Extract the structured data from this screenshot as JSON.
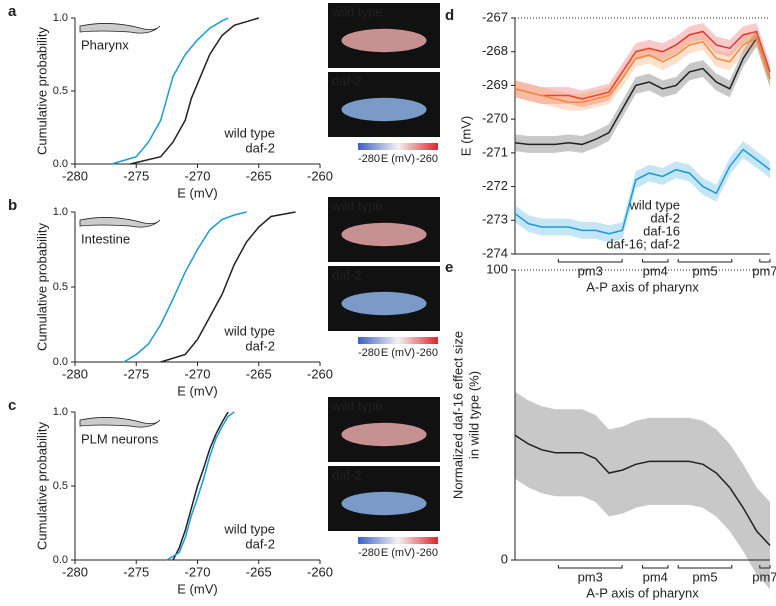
{
  "chart_data": [
    {
      "type": "cdf",
      "panel": "a",
      "annotation": "Pharynx",
      "xlabel": "E (mV)",
      "ylabel": "Cumulative probability",
      "xlim": [
        -280,
        -260
      ],
      "xticks": [
        -280,
        -275,
        -270,
        -265,
        -260
      ],
      "ylim": [
        0,
        1
      ],
      "yticks": [
        {
          "value": 0,
          "label": "0.0"
        },
        {
          "value": 0.5,
          "label": "0.5"
        },
        {
          "value": 1,
          "label": "1.0"
        }
      ],
      "series": [
        {
          "name": "wild type",
          "color": "#222222",
          "x": [
            -275.5,
            -273,
            -272,
            -271,
            -270.5,
            -270,
            -269.5,
            -269,
            -268,
            -267,
            -265
          ],
          "values": [
            0,
            0.05,
            0.15,
            0.3,
            0.45,
            0.55,
            0.65,
            0.75,
            0.88,
            0.95,
            1
          ]
        },
        {
          "name": "daf-2",
          "color": "#1a9bd7",
          "x": [
            -277,
            -275,
            -274,
            -273,
            -272.5,
            -272,
            -271,
            -270,
            -269,
            -268,
            -267.5
          ],
          "values": [
            0,
            0.05,
            0.15,
            0.3,
            0.45,
            0.6,
            0.75,
            0.85,
            0.93,
            0.98,
            1
          ]
        }
      ],
      "image_labels": [
        "wild type",
        "daf-2"
      ],
      "colorbar_ticks": [
        -280,
        -260
      ],
      "colorbar_label": "E (mV)"
    },
    {
      "type": "cdf",
      "panel": "b",
      "annotation": "Intestine",
      "xlabel": "E (mV)",
      "ylabel": "Cumulative probability",
      "xlim": [
        -280,
        -260
      ],
      "xticks": [
        -280,
        -275,
        -270,
        -265,
        -260
      ],
      "ylim": [
        0,
        1
      ],
      "yticks": [
        {
          "value": 0,
          "label": "0.0"
        },
        {
          "value": 0.5,
          "label": "0.5"
        },
        {
          "value": 1,
          "label": "1.0"
        }
      ],
      "series": [
        {
          "name": "wild type",
          "color": "#222222",
          "x": [
            -273,
            -271,
            -270,
            -269,
            -268,
            -267.5,
            -267,
            -266,
            -265,
            -264,
            -262
          ],
          "values": [
            0,
            0.05,
            0.15,
            0.3,
            0.45,
            0.55,
            0.65,
            0.8,
            0.9,
            0.97,
            1
          ]
        },
        {
          "name": "daf-2",
          "color": "#1a9bd7",
          "x": [
            -276,
            -275,
            -274,
            -273,
            -272,
            -271,
            -270,
            -269,
            -268,
            -267,
            -266
          ],
          "values": [
            0,
            0.05,
            0.12,
            0.25,
            0.42,
            0.6,
            0.75,
            0.88,
            0.95,
            0.98,
            1
          ]
        }
      ],
      "image_labels": [
        "wild type",
        "daf-2"
      ],
      "colorbar_ticks": [
        -280,
        -260
      ],
      "colorbar_label": "E (mV)"
    },
    {
      "type": "cdf",
      "panel": "c",
      "annotation": "PLM neurons",
      "xlabel": "E (mV)",
      "ylabel": "Cumulative probability",
      "xlim": [
        -280,
        -260
      ],
      "xticks": [
        -280,
        -275,
        -270,
        -265,
        -260
      ],
      "ylim": [
        0,
        1
      ],
      "yticks": [
        {
          "value": 0,
          "label": "0.0"
        },
        {
          "value": 0.5,
          "label": "0.5"
        },
        {
          "value": 1,
          "label": "1.0"
        }
      ],
      "series": [
        {
          "name": "wild type",
          "color": "#222222",
          "x": [
            -272,
            -271.5,
            -271,
            -270.5,
            -270,
            -269.5,
            -269,
            -268.5,
            -268,
            -267.5
          ],
          "values": [
            0,
            0.08,
            0.2,
            0.35,
            0.5,
            0.62,
            0.75,
            0.85,
            0.93,
            1
          ]
        },
        {
          "name": "daf-2",
          "color": "#1a9bd7",
          "x": [
            -272.5,
            -271.5,
            -271,
            -270.5,
            -270,
            -269.5,
            -269,
            -268.5,
            -268,
            -267.5,
            -267
          ],
          "values": [
            0,
            0.05,
            0.15,
            0.3,
            0.42,
            0.55,
            0.7,
            0.82,
            0.9,
            0.97,
            1
          ]
        }
      ],
      "image_labels": [
        "wild type",
        "daf-2"
      ],
      "colorbar_ticks": [
        -280,
        -260
      ],
      "colorbar_label": "E (mV)"
    },
    {
      "type": "band",
      "panel": "d",
      "xlabel": "A-P axis of pharynx",
      "ylabel": [
        "E (mV)"
      ],
      "ylim": [
        -274,
        -267
      ],
      "yticks": [
        -274,
        -273,
        -272,
        -271,
        -270,
        -269,
        -268,
        -267
      ],
      "regions": [
        "pm3",
        "pm4",
        "pm5",
        "pm7"
      ],
      "series": [
        {
          "name": "wild type",
          "color": "#222222",
          "error": 0.25,
          "values": [
            -270.7,
            -270.75,
            -270.75,
            -270.75,
            -270.7,
            -270.75,
            -270.6,
            -270.4,
            -269.7,
            -269.0,
            -268.9,
            -269.1,
            -269.0,
            -268.6,
            -268.5,
            -268.9,
            -269.1,
            -268.2,
            -267.6,
            -268.8
          ]
        },
        {
          "name": "daf-2",
          "color": "#1a9bd7",
          "error": 0.25,
          "values": [
            -272.8,
            -273.1,
            -273.2,
            -273.2,
            -273.2,
            -273.3,
            -273.3,
            -273.4,
            -273.3,
            -271.8,
            -271.6,
            -271.7,
            -271.5,
            -271.6,
            -272.0,
            -272.2,
            -271.4,
            -270.9,
            -271.2,
            -271.5
          ]
        },
        {
          "name": "daf-16",
          "color": "#e4312b",
          "error": 0.25,
          "values": [
            -269.1,
            -269.2,
            -269.3,
            -269.3,
            -269.3,
            -269.4,
            -269.3,
            -269.2,
            -268.6,
            -268.0,
            -267.9,
            -268.0,
            -267.8,
            -267.5,
            -267.4,
            -267.8,
            -267.9,
            -267.5,
            -267.4,
            -268.6
          ]
        },
        {
          "name": "daf-16; daf-2",
          "color": "#f28c3c",
          "error": 0.25,
          "values": [
            -269.1,
            -269.2,
            -269.3,
            -269.4,
            -269.5,
            -269.5,
            -269.4,
            -269.3,
            -268.8,
            -268.2,
            -268.1,
            -268.3,
            -268.1,
            -267.8,
            -267.7,
            -268.2,
            -268.3,
            -267.8,
            -267.6,
            -268.8
          ]
        }
      ]
    },
    {
      "type": "band",
      "panel": "e",
      "xlabel": "A-P axis of pharynx",
      "ylabel": [
        "Normalized daf-16 effect size",
        "in wild type (%)"
      ],
      "ylim": [
        0,
        100
      ],
      "yticks": [
        0,
        100
      ],
      "regions": [
        "pm3",
        "pm4",
        "pm5",
        "pm7"
      ],
      "series": [
        {
          "color": "#222222",
          "error": 15,
          "values": [
            43,
            40,
            38,
            37,
            37,
            37,
            35,
            30,
            31,
            33,
            34,
            34,
            34,
            34,
            33,
            30,
            25,
            18,
            10,
            5
          ]
        }
      ]
    }
  ]
}
